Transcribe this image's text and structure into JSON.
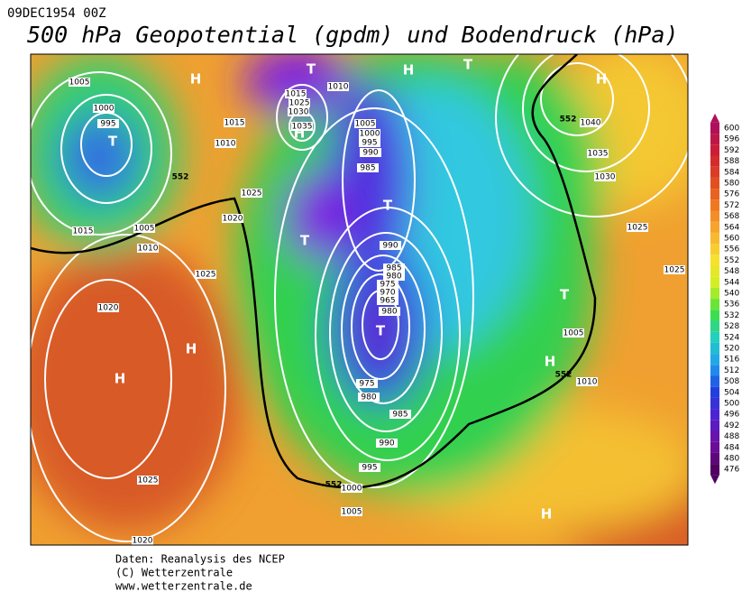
{
  "header": {
    "date": "09DEC1954 00Z",
    "title": "500 hPa Geopotential (gpdm) und Bodendruck (hPa)"
  },
  "map": {
    "pressure_centers": [
      "H",
      "T",
      "T",
      "H",
      "T",
      "H",
      "H",
      "T",
      "T",
      "T",
      "H",
      "H",
      "T",
      "H",
      "H"
    ],
    "isobar_labels": [
      1005,
      1000,
      995,
      1015,
      1010,
      1025,
      1020,
      1005,
      1015,
      1010,
      1025,
      1020,
      1015,
      1025,
      1030,
      1035,
      1010,
      1005,
      1000,
      995,
      990,
      985,
      990,
      985,
      980,
      975,
      970,
      965,
      980,
      975,
      980,
      985,
      990,
      995,
      1000,
      1005,
      1025,
      1020,
      1040,
      1035,
      1030,
      1025,
      1025,
      1005,
      1010
    ],
    "contour_labels": [
      552,
      552,
      552,
      552
    ]
  },
  "colorbar": {
    "ticks": [
      600,
      596,
      592,
      588,
      584,
      580,
      576,
      572,
      568,
      564,
      560,
      556,
      552,
      548,
      544,
      540,
      536,
      532,
      528,
      524,
      520,
      516,
      512,
      508,
      504,
      500,
      496,
      492,
      488,
      484,
      480,
      476
    ]
  },
  "footer": {
    "lines": [
      "Daten: Reanalysis des NCEP",
      "(C) Wetterzentrale",
      "www.wetterzentrale.de"
    ]
  }
}
